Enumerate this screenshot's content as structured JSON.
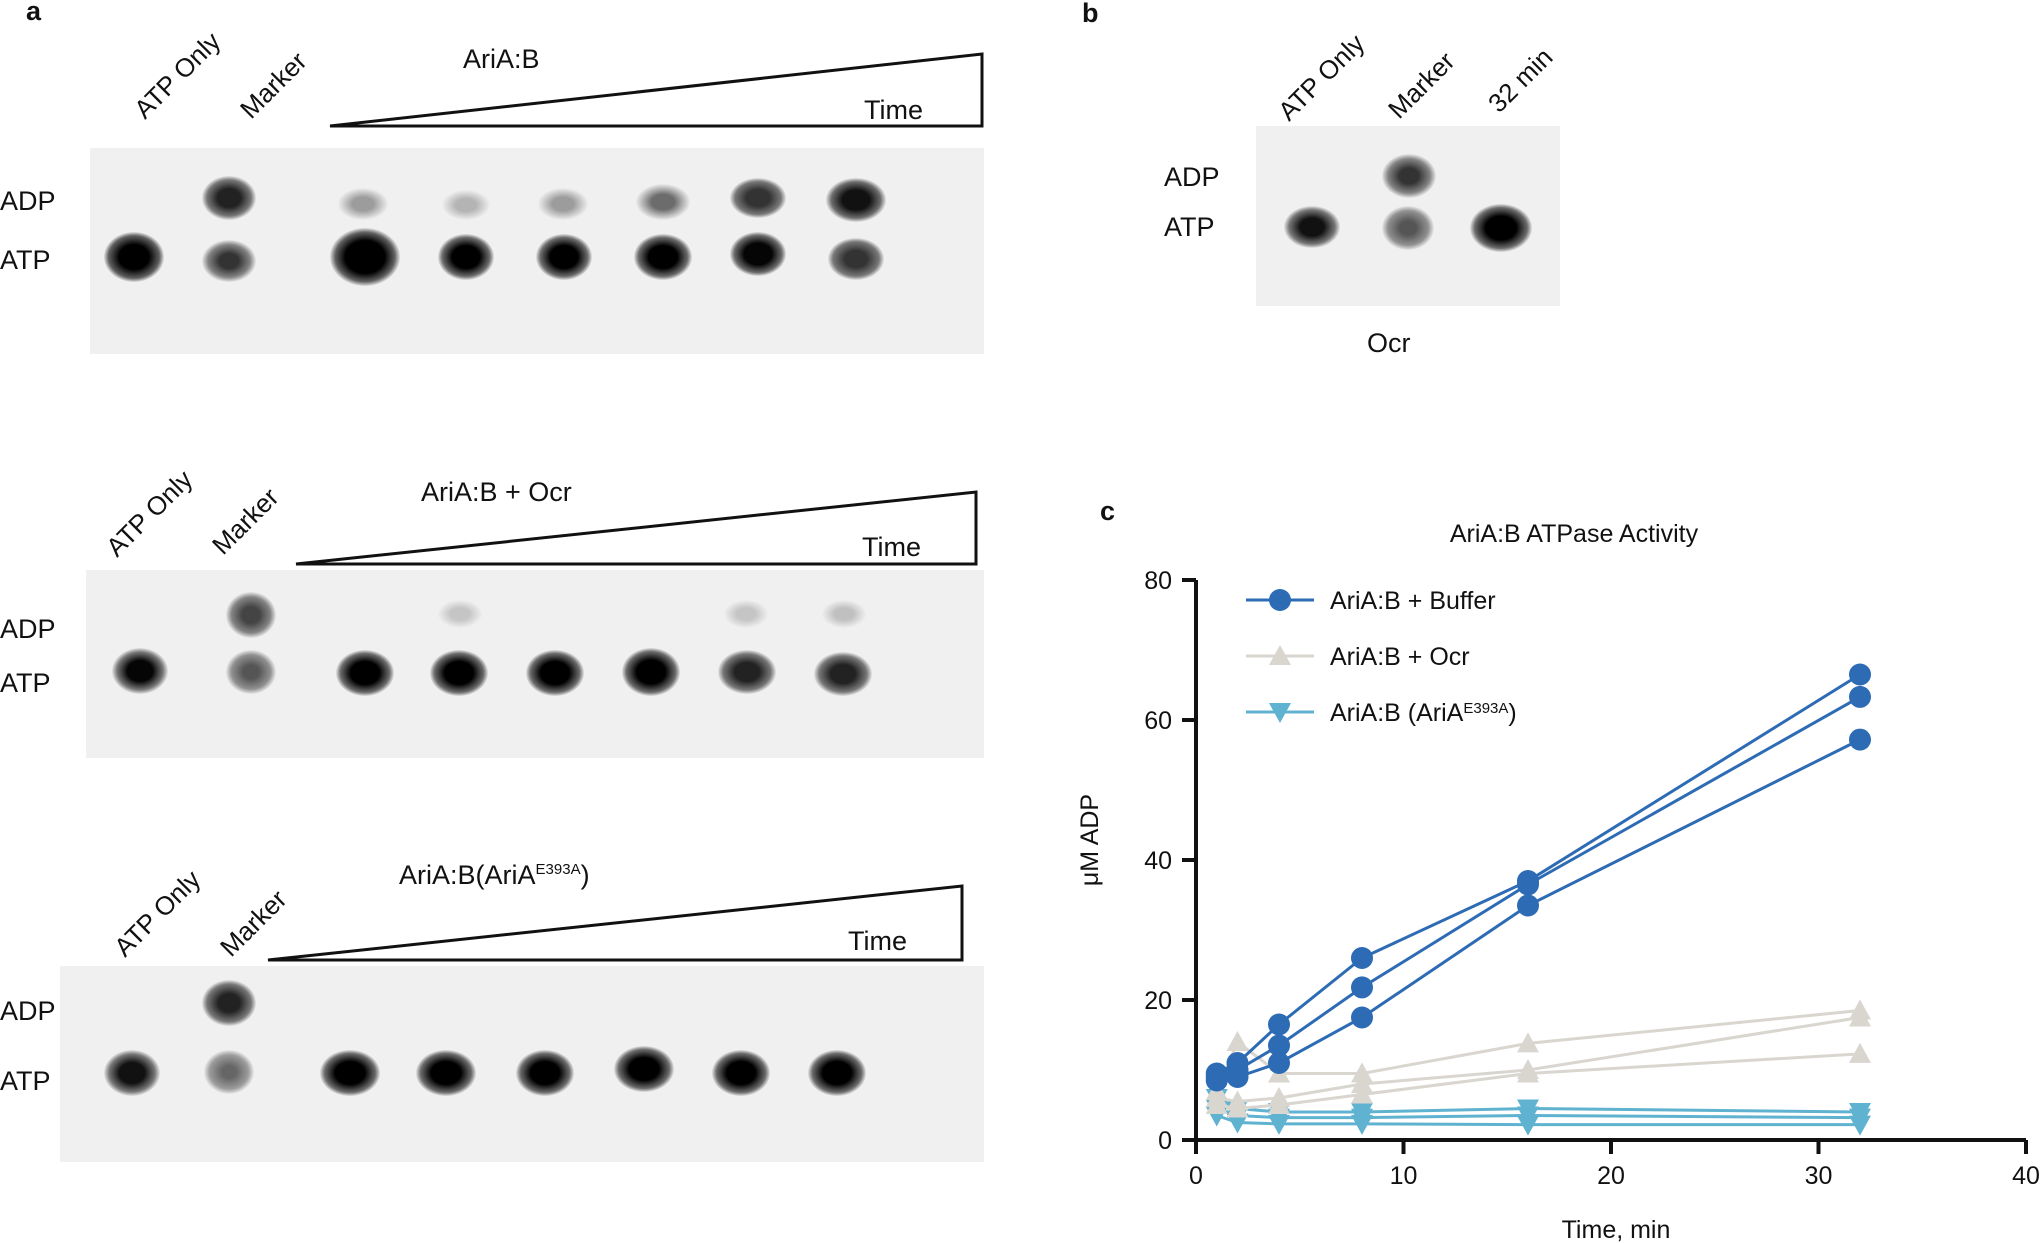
{
  "panel_a": {
    "letter": "a",
    "gels": [
      {
        "condition": "AriA:B",
        "condition_sup": "",
        "condition_suffix": "",
        "lanes": [
          "ATP Only",
          "Marker"
        ],
        "time_label": "Time",
        "adp_label": "ADP",
        "atp_label": "ATP"
      },
      {
        "condition": "AriA:B + Ocr",
        "condition_sup": "",
        "condition_suffix": "",
        "lanes": [
          "ATP Only",
          "Marker"
        ],
        "time_label": "Time",
        "adp_label": "ADP",
        "atp_label": "ATP"
      },
      {
        "condition": "AriA:B(AriA",
        "condition_sup": "E393A",
        "condition_suffix": ")",
        "lanes": [
          "ATP Only",
          "Marker"
        ],
        "time_label": "Time",
        "adp_label": "ADP",
        "atp_label": "ATP"
      }
    ]
  },
  "panel_b": {
    "letter": "b",
    "lanes": [
      "ATP Only",
      "Marker",
      "32 min"
    ],
    "adp_label": "ADP",
    "atp_label": "ATP",
    "caption": "Ocr"
  },
  "panel_c": {
    "letter": "c"
  },
  "chart_data": {
    "type": "line",
    "title": "AriA:B ATPase Activity",
    "xlabel": "Time, min",
    "ylabel": "μM ADP",
    "xlim": [
      0,
      40
    ],
    "ylim": [
      0,
      80
    ],
    "xticks": [
      "0",
      "10",
      "20",
      "30",
      "40"
    ],
    "yticks": [
      "0",
      "20",
      "40",
      "60",
      "80"
    ],
    "legend": [
      {
        "label": "AriA:B + Buffer",
        "sup": "",
        "suffix": ""
      },
      {
        "label": "AriA:B + Ocr",
        "sup": "",
        "suffix": ""
      },
      {
        "label": "AriA:B (AriA",
        "sup": "E393A",
        "suffix": ")"
      }
    ],
    "x": [
      1,
      2,
      4,
      8,
      16,
      32
    ],
    "series": [
      {
        "name": "AriA:B + Buffer (rep 1)",
        "group": 0,
        "color": "#2d6bb5",
        "marker": "circle",
        "values": [
          9.5,
          11,
          16.5,
          26,
          37,
          66.5
        ]
      },
      {
        "name": "AriA:B + Buffer (rep 2)",
        "group": 0,
        "color": "#2d6bb5",
        "marker": "circle",
        "values": [
          9,
          10,
          13.5,
          21.8,
          36.5,
          63.3
        ]
      },
      {
        "name": "AriA:B + Buffer (rep 3)",
        "group": 0,
        "color": "#2d6bb5",
        "marker": "circle",
        "values": [
          8.5,
          9,
          11,
          17.5,
          33.5,
          57.2
        ]
      },
      {
        "name": "AriA:B + Ocr (rep 1)",
        "group": 1,
        "color": "#d9d6d0",
        "marker": "triangle-up",
        "values": [
          7,
          14,
          9.5,
          9.5,
          13.8,
          18.5
        ]
      },
      {
        "name": "AriA:B + Ocr (rep 2)",
        "group": 1,
        "color": "#d9d6d0",
        "marker": "triangle-up",
        "values": [
          6,
          5.5,
          6,
          8,
          10,
          17.5
        ]
      },
      {
        "name": "AriA:B + Ocr (rep 3)",
        "group": 1,
        "color": "#d9d6d0",
        "marker": "triangle-up",
        "values": [
          5,
          4.5,
          5,
          6.5,
          9.5,
          12.3
        ]
      },
      {
        "name": "AriA:B (AriA E393A) (rep 1)",
        "group": 2,
        "color": "#5fb2d0",
        "marker": "triangle-down",
        "values": [
          6,
          4.5,
          4,
          4,
          4.5,
          4
        ]
      },
      {
        "name": "AriA:B (AriA E393A) (rep 2)",
        "group": 2,
        "color": "#5fb2d0",
        "marker": "triangle-down",
        "values": [
          4.5,
          3.5,
          3.2,
          3.2,
          3.5,
          3.2
        ]
      },
      {
        "name": "AriA:B (AriA E393A) (rep 3)",
        "group": 2,
        "color": "#5fb2d0",
        "marker": "triangle-down",
        "values": [
          3.5,
          2.5,
          2.3,
          2.3,
          2.2,
          2.2
        ]
      }
    ]
  }
}
